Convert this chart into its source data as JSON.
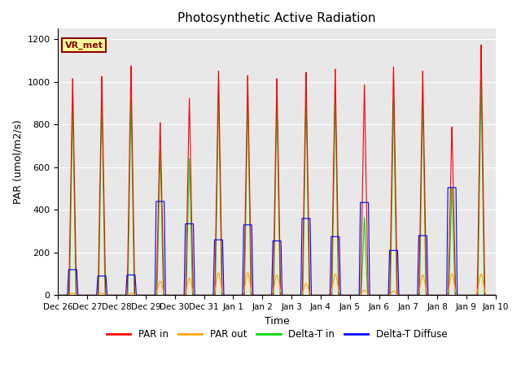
{
  "title": "Photosynthetic Active Radiation",
  "ylabel": "PAR (umol/m2/s)",
  "xlabel": "Time",
  "ylim": [
    0,
    1250
  ],
  "background_color": "#e8e8e8",
  "annotation_text": "VR_met",
  "annotation_bg": "#ffff99",
  "annotation_border": "#8b0000",
  "x_tick_labels": [
    "Dec 26",
    "Dec 27",
    "Dec 28",
    "Dec 29",
    "Dec 30",
    "Dec 31",
    "Jan 1",
    "Jan 2",
    "Jan 3",
    "Jan 4",
    "Jan 5",
    "Jan 6",
    "Jan 7",
    "Jan 8",
    "Jan 9",
    "Jan 10"
  ],
  "colors": {
    "PAR_in": "#ff0000",
    "PAR_out": "#ffa500",
    "Delta_T_in": "#00dd00",
    "Delta_T_Diffuse": "#0000ff"
  },
  "legend_labels": [
    "PAR in",
    "PAR out",
    "Delta-T in",
    "Delta-T Diffuse"
  ],
  "num_days": 15,
  "pts_per_day": 288,
  "day_peaks": {
    "PAR_in": [
      1030,
      1040,
      1090,
      820,
      935,
      1065,
      1045,
      1030,
      1060,
      1075,
      1000,
      1085,
      1065,
      800,
      1190
    ],
    "PAR_out": [
      10,
      10,
      10,
      65,
      80,
      105,
      105,
      95,
      55,
      100,
      25,
      20,
      95,
      100,
      100
    ],
    "Delta_T_in": [
      910,
      935,
      935,
      690,
      650,
      960,
      945,
      935,
      945,
      950,
      370,
      935,
      935,
      510,
      1025
    ],
    "Delta_T_Diff": [
      120,
      90,
      95,
      440,
      335,
      260,
      330,
      255,
      360,
      275,
      435,
      210,
      280,
      505,
      0
    ]
  }
}
